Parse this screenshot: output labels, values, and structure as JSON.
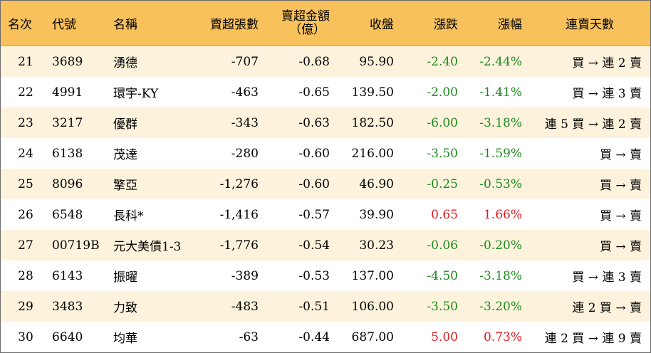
{
  "headers": {
    "rank": "名次",
    "code": "代號",
    "name": "名稱",
    "shares": "賣超張數",
    "amount_line1": "賣超金額",
    "amount_line2": "（億）",
    "close": "收盤",
    "change": "漲跌",
    "change_pct": "漲幅",
    "streak": "連賣天數"
  },
  "rows": [
    {
      "rank": "21",
      "code": "3689",
      "name": "湧德",
      "shares": "-707",
      "amount": "-0.68",
      "close": "95.90",
      "change": "-2.40",
      "change_pct": "-2.44%",
      "streak": "買 → 連 2 賣",
      "dir": "neg"
    },
    {
      "rank": "22",
      "code": "4991",
      "name": "環宇-KY",
      "shares": "-463",
      "amount": "-0.65",
      "close": "139.50",
      "change": "-2.00",
      "change_pct": "-1.41%",
      "streak": "買 → 連 3 賣",
      "dir": "neg"
    },
    {
      "rank": "23",
      "code": "3217",
      "name": "優群",
      "shares": "-343",
      "amount": "-0.63",
      "close": "182.50",
      "change": "-6.00",
      "change_pct": "-3.18%",
      "streak": "連 5 買 → 連 2 賣",
      "dir": "neg"
    },
    {
      "rank": "24",
      "code": "6138",
      "name": "茂達",
      "shares": "-280",
      "amount": "-0.60",
      "close": "216.00",
      "change": "-3.50",
      "change_pct": "-1.59%",
      "streak": "買 → 賣",
      "dir": "neg"
    },
    {
      "rank": "25",
      "code": "8096",
      "name": "擎亞",
      "shares": "-1,276",
      "amount": "-0.60",
      "close": "46.90",
      "change": "-0.25",
      "change_pct": "-0.53%",
      "streak": "買 → 賣",
      "dir": "neg"
    },
    {
      "rank": "26",
      "code": "6548",
      "name": "長科*",
      "shares": "-1,416",
      "amount": "-0.57",
      "close": "39.90",
      "change": "0.65",
      "change_pct": "1.66%",
      "streak": "買 → 賣",
      "dir": "pos"
    },
    {
      "rank": "27",
      "code": "00719B",
      "name": "元大美債1-3",
      "shares": "-1,776",
      "amount": "-0.54",
      "close": "30.23",
      "change": "-0.06",
      "change_pct": "-0.20%",
      "streak": "買 → 賣",
      "dir": "neg"
    },
    {
      "rank": "28",
      "code": "6143",
      "name": "振曜",
      "shares": "-389",
      "amount": "-0.53",
      "close": "137.00",
      "change": "-4.50",
      "change_pct": "-3.18%",
      "streak": "買 → 連 3 賣",
      "dir": "neg"
    },
    {
      "rank": "29",
      "code": "3483",
      "name": "力致",
      "shares": "-483",
      "amount": "-0.51",
      "close": "106.00",
      "change": "-3.50",
      "change_pct": "-3.20%",
      "streak": "連 2 買 → 賣",
      "dir": "neg"
    },
    {
      "rank": "30",
      "code": "6640",
      "name": "均華",
      "shares": "-63",
      "amount": "-0.44",
      "close": "687.00",
      "change": "5.00",
      "change_pct": "0.73%",
      "streak": "連 2 買 → 連 9 賣",
      "dir": "pos"
    }
  ],
  "colors": {
    "header_bg": "#f8c15b",
    "odd_row_bg": "#fdf3dd",
    "even_row_bg": "#ffffff",
    "up": "#e0191f",
    "down": "#1c8a1c"
  }
}
